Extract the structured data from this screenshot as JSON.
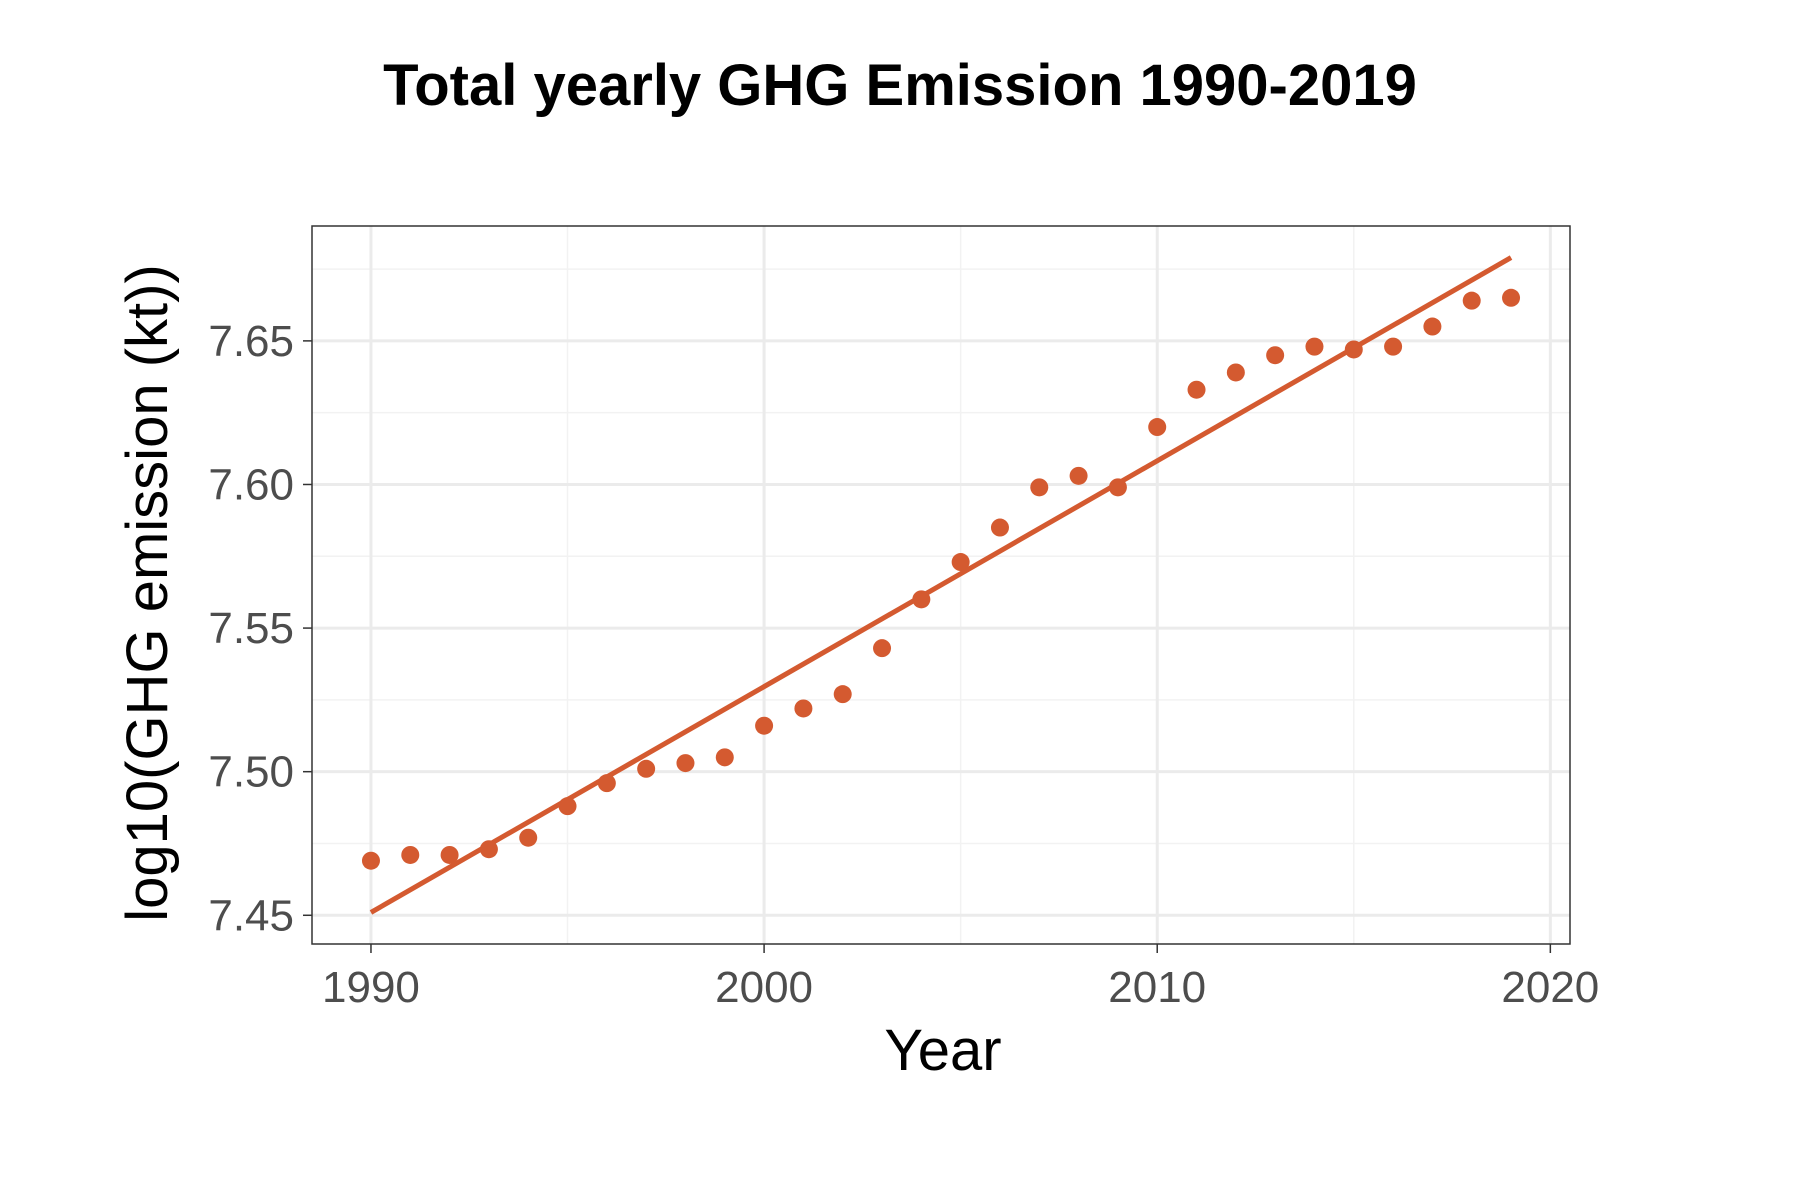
{
  "chart_data": {
    "type": "scatter",
    "title": "Total yearly GHG Emission 1990-2019",
    "xlabel": "Year",
    "ylabel": "log10(GHG emission (kt))",
    "xlim": [
      1988.5,
      2020.5
    ],
    "ylim": [
      7.44,
      7.69
    ],
    "x_ticks": [
      1990,
      2000,
      2010,
      2020
    ],
    "y_ticks": [
      7.45,
      7.5,
      7.55,
      7.6,
      7.65
    ],
    "y_tick_labels": [
      "7.45",
      "7.50",
      "7.55",
      "7.60",
      "7.65"
    ],
    "grid": true,
    "point_color": "#d45a30",
    "line_color": "#d45a30",
    "points": [
      {
        "x": 1990,
        "y": 7.469
      },
      {
        "x": 1991,
        "y": 7.471
      },
      {
        "x": 1992,
        "y": 7.471
      },
      {
        "x": 1993,
        "y": 7.473
      },
      {
        "x": 1994,
        "y": 7.477
      },
      {
        "x": 1995,
        "y": 7.488
      },
      {
        "x": 1996,
        "y": 7.496
      },
      {
        "x": 1997,
        "y": 7.501
      },
      {
        "x": 1998,
        "y": 7.503
      },
      {
        "x": 1999,
        "y": 7.505
      },
      {
        "x": 2000,
        "y": 7.516
      },
      {
        "x": 2001,
        "y": 7.522
      },
      {
        "x": 2002,
        "y": 7.527
      },
      {
        "x": 2003,
        "y": 7.543
      },
      {
        "x": 2004,
        "y": 7.56
      },
      {
        "x": 2005,
        "y": 7.573
      },
      {
        "x": 2006,
        "y": 7.585
      },
      {
        "x": 2007,
        "y": 7.599
      },
      {
        "x": 2008,
        "y": 7.603
      },
      {
        "x": 2009,
        "y": 7.599
      },
      {
        "x": 2010,
        "y": 7.62
      },
      {
        "x": 2011,
        "y": 7.633
      },
      {
        "x": 2012,
        "y": 7.639
      },
      {
        "x": 2013,
        "y": 7.645
      },
      {
        "x": 2014,
        "y": 7.648
      },
      {
        "x": 2015,
        "y": 7.647
      },
      {
        "x": 2016,
        "y": 7.648
      },
      {
        "x": 2017,
        "y": 7.655
      },
      {
        "x": 2018,
        "y": 7.664
      },
      {
        "x": 2019,
        "y": 7.665
      }
    ],
    "trend_line": {
      "x": [
        1990,
        2019
      ],
      "y": [
        7.451,
        7.679
      ]
    }
  }
}
